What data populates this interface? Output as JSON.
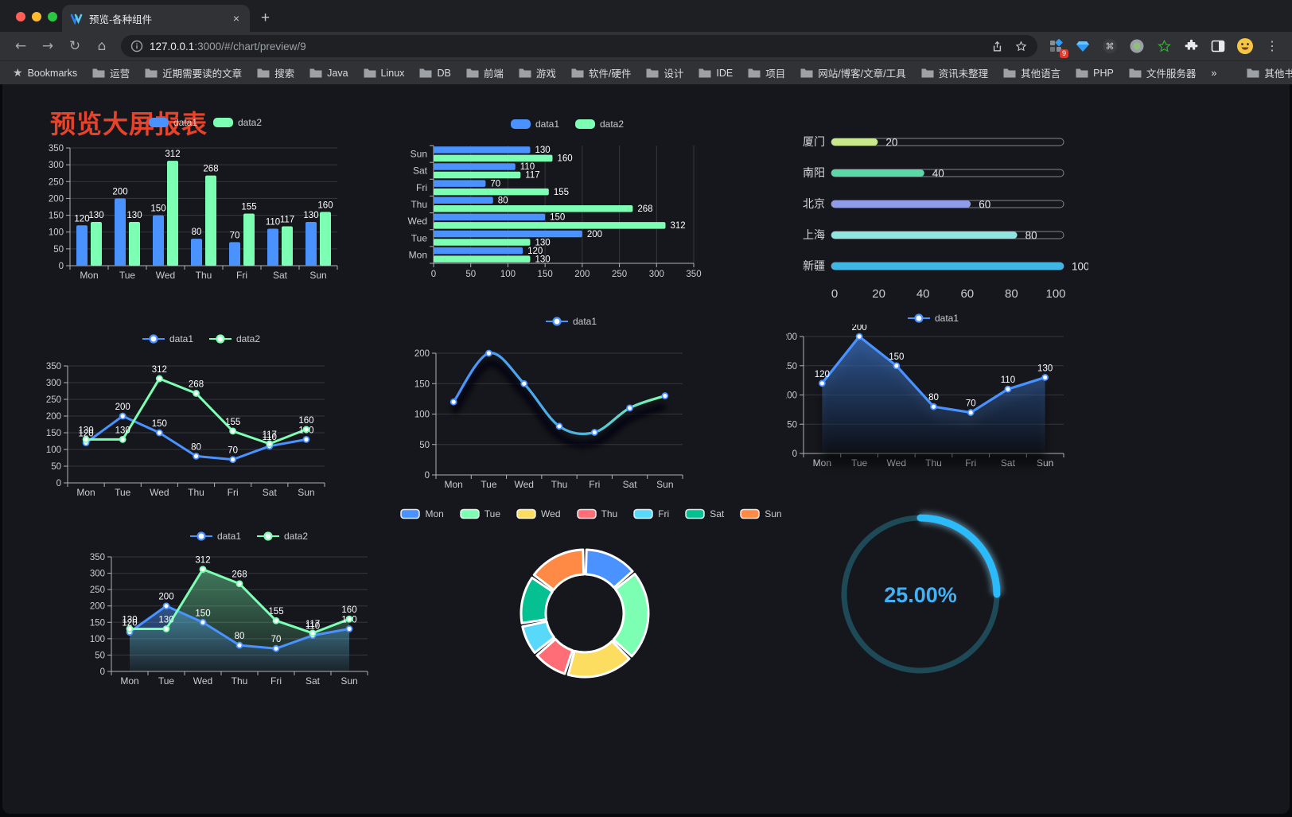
{
  "browser": {
    "tab_title": "预览-各种组件",
    "new_tab": "+",
    "close_tab": "×",
    "url_host": "127.0.0.1",
    "url_rest": ":3000/#/chart/preview/9",
    "bookmarks_label": "Bookmarks",
    "bookmarks": [
      "运营",
      "近期需要读的文章",
      "搜索",
      "Java",
      "Linux",
      "DB",
      "前端",
      "游戏",
      "软件/硬件",
      "设计",
      "IDE",
      "项目",
      "网站/博客/文章/工具",
      "资讯未整理",
      "其他语言",
      "PHP",
      "文件服务器"
    ],
    "bookmarks_overflow": "»",
    "other_bookmarks": "其他书签",
    "extension_badge": "9",
    "menu_dots": "⋮"
  },
  "page": {
    "title": "预览大屏报表",
    "title_color": "#e8432a",
    "background": "#15171c"
  },
  "palette": {
    "data1": "#4992ff",
    "data2": "#7cffb2",
    "axis": "#aeb2b8",
    "grid": "rgba(255,255,255,0.14)",
    "tick_label": "#c9ccd2",
    "value_label": "#ffffff"
  },
  "chart_data": [
    {
      "id": "c1",
      "type": "bar",
      "orientation": "vertical",
      "categories": [
        "Mon",
        "Tue",
        "Wed",
        "Thu",
        "Fri",
        "Sat",
        "Sun"
      ],
      "series": [
        {
          "name": "data1",
          "color": "#4992ff",
          "values": [
            120,
            200,
            150,
            80,
            70,
            110,
            130
          ]
        },
        {
          "name": "data2",
          "color": "#7cffb2",
          "values": [
            130,
            130,
            312,
            268,
            155,
            117,
            160
          ]
        }
      ],
      "ylim": [
        0,
        350
      ],
      "ytick": 50,
      "legend_position": "top",
      "grid": true
    },
    {
      "id": "c2",
      "type": "bar",
      "orientation": "horizontal",
      "categories": [
        "Mon",
        "Tue",
        "Wed",
        "Thu",
        "Fri",
        "Sat",
        "Sun"
      ],
      "series": [
        {
          "name": "data1",
          "color": "#4992ff",
          "values": [
            120,
            200,
            150,
            80,
            70,
            110,
            130
          ]
        },
        {
          "name": "data2",
          "color": "#7cffb2",
          "values": [
            130,
            130,
            312,
            268,
            155,
            117,
            160
          ]
        }
      ],
      "xlim": [
        0,
        350
      ],
      "xtick": 50,
      "legend_position": "top",
      "grid": true
    },
    {
      "id": "c3",
      "type": "bar",
      "orientation": "progress",
      "items": [
        {
          "label": "厦门",
          "value": 20,
          "color": "#c9e88c"
        },
        {
          "label": "南阳",
          "value": 40,
          "color": "#58d9a5"
        },
        {
          "label": "北京",
          "value": 60,
          "color": "#8f9ce8"
        },
        {
          "label": "上海",
          "value": 80,
          "color": "#8fe5e0"
        },
        {
          "label": "新疆",
          "value": 100,
          "color": "#3fb6e3"
        }
      ],
      "xlim": [
        0,
        100
      ],
      "xticks": [
        0,
        20,
        40,
        60,
        80,
        100
      ],
      "grid": false
    },
    {
      "id": "c4",
      "type": "line",
      "categories": [
        "Mon",
        "Tue",
        "Wed",
        "Thu",
        "Fri",
        "Sat",
        "Sun"
      ],
      "series": [
        {
          "name": "data1",
          "color": "#4992ff",
          "values": [
            120,
            200,
            150,
            80,
            70,
            110,
            130
          ]
        },
        {
          "name": "data2",
          "color": "#7cffb2",
          "values": [
            130,
            130,
            312,
            268,
            155,
            117,
            160
          ]
        }
      ],
      "ylim": [
        0,
        350
      ],
      "ytick": 50,
      "labels": true,
      "legend_position": "top",
      "grid": true
    },
    {
      "id": "c5",
      "type": "line",
      "smooth": true,
      "categories": [
        "Mon",
        "Tue",
        "Wed",
        "Thu",
        "Fri",
        "Sat",
        "Sun"
      ],
      "series": [
        {
          "name": "data1",
          "color": "#4992ff",
          "values": [
            120,
            200,
            150,
            80,
            70,
            110,
            130
          ]
        }
      ],
      "gradient": [
        "#4992ff",
        "#4db7e0",
        "#7cffb2"
      ],
      "ylim": [
        0,
        200
      ],
      "ytick": 50,
      "labels": false,
      "legend_position": "top",
      "grid": true
    },
    {
      "id": "c6",
      "type": "area",
      "categories": [
        "Mon",
        "Tue",
        "Wed",
        "Thu",
        "Fri",
        "Sat",
        "Sun"
      ],
      "series": [
        {
          "name": "data1",
          "color": "#4992ff",
          "values": [
            120,
            200,
            150,
            80,
            70,
            110,
            130
          ]
        }
      ],
      "ylim": [
        0,
        200
      ],
      "ytick": 50,
      "labels": true,
      "legend_position": "top",
      "grid": true
    },
    {
      "id": "c7",
      "type": "area",
      "categories": [
        "Mon",
        "Tue",
        "Wed",
        "Thu",
        "Fri",
        "Sat",
        "Sun"
      ],
      "series": [
        {
          "name": "data1",
          "color": "#4992ff",
          "values": [
            120,
            200,
            150,
            80,
            70,
            110,
            130
          ]
        },
        {
          "name": "data2",
          "color": "#7cffb2",
          "values": [
            130,
            130,
            312,
            268,
            155,
            117,
            160
          ]
        }
      ],
      "ylim": [
        0,
        350
      ],
      "ytick": 50,
      "labels": true,
      "legend_position": "top",
      "grid": true
    },
    {
      "id": "c8",
      "type": "pie",
      "inner": true,
      "categories": [
        "Mon",
        "Tue",
        "Wed",
        "Thu",
        "Fri",
        "Sat",
        "Sun"
      ],
      "values": [
        120,
        200,
        150,
        80,
        70,
        110,
        130
      ],
      "colors": [
        "#4992ff",
        "#7cffb2",
        "#fddd60",
        "#ff6e76",
        "#58d9f9",
        "#05c091",
        "#ff8a45"
      ],
      "legend_position": "top"
    },
    {
      "id": "c9",
      "type": "gauge",
      "value": 25,
      "label": "25.00%",
      "arc_color": "#2bbafa",
      "track_color": "#1e4a58",
      "text_color": "#41b2f7"
    }
  ]
}
